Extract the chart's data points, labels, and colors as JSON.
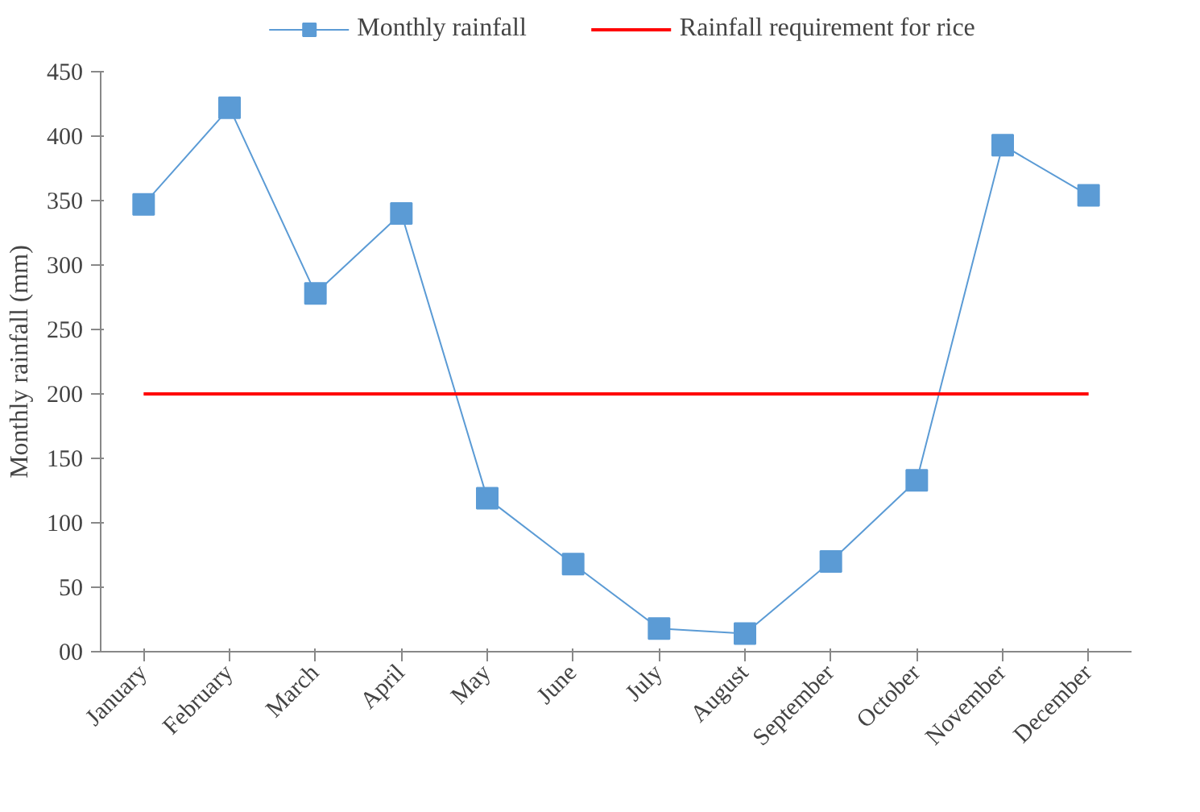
{
  "chart_data": {
    "type": "line",
    "ylabel": "Monthly rainfall (mm)",
    "categories": [
      "January",
      "February",
      "March",
      "April",
      "May",
      "June",
      "July",
      "August",
      "September",
      "October",
      "November",
      "December"
    ],
    "series": [
      {
        "name": "Monthly rainfall",
        "color": "#5b9bd5",
        "marker": "square",
        "values": [
          347,
          422,
          278,
          340,
          119,
          68,
          18,
          14,
          70,
          133,
          393,
          354
        ]
      },
      {
        "name": "Rainfall requirement for rice",
        "color": "#ff0000",
        "marker": "none",
        "values": [
          200,
          200,
          200,
          200,
          200,
          200,
          200,
          200,
          200,
          200,
          200,
          200
        ]
      }
    ],
    "ylim": [
      0,
      450
    ],
    "yticks": [
      {
        "value": 0,
        "label": "00"
      },
      50,
      100,
      150,
      200,
      250,
      300,
      350,
      400,
      450
    ],
    "grid": false,
    "legend": "top"
  }
}
